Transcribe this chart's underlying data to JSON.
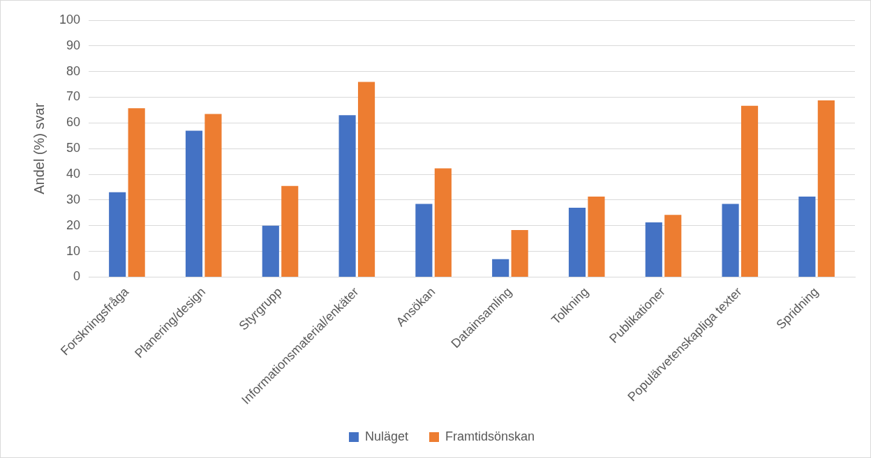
{
  "chart_data": {
    "type": "bar",
    "ylabel": "Andel (%) svar",
    "categories": [
      "Forskningsfråga",
      "Planering/design",
      "Styrgrupp",
      "Informationsmaterial/enkäter",
      "Ansökan",
      "Datainsamling",
      "Tolkning",
      "Publikationer",
      "Populärvetenskapliga texter",
      "Spridning"
    ],
    "series": [
      {
        "name": "Nuläget",
        "color": "#4472c4",
        "values": [
          33,
          57,
          20,
          63,
          28.5,
          7,
          27,
          21.3,
          28.5,
          31.3
        ]
      },
      {
        "name": "Framtidsönskan",
        "color": "#ed7d31",
        "values": [
          65.7,
          63.5,
          35.5,
          76,
          42.3,
          18.3,
          31.3,
          24.2,
          66.7,
          68.8
        ]
      }
    ],
    "ylim": [
      0,
      100
    ],
    "yticks": [
      0,
      10,
      20,
      30,
      40,
      50,
      60,
      70,
      80,
      90,
      100
    ],
    "grid": "y",
    "legend": "bottom"
  }
}
